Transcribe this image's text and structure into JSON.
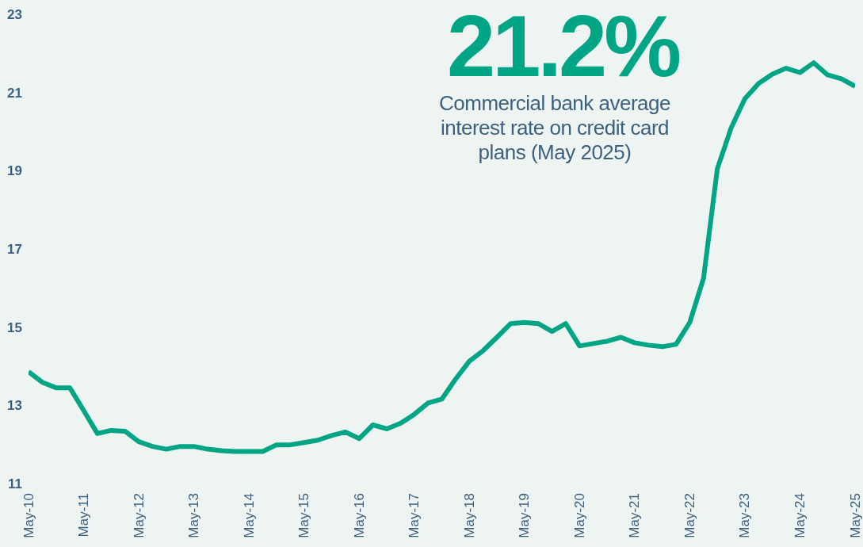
{
  "chart_data": {
    "type": "line",
    "categories": [
      "May-10",
      null,
      null,
      null,
      "May-11",
      null,
      null,
      null,
      "May-12",
      null,
      null,
      null,
      "May-13",
      null,
      null,
      null,
      "May-14",
      null,
      null,
      null,
      "May-15",
      null,
      null,
      null,
      "May-16",
      null,
      null,
      null,
      "May-17",
      null,
      null,
      null,
      "May-18",
      null,
      null,
      null,
      "May-19",
      null,
      null,
      null,
      "May-20",
      null,
      null,
      null,
      "May-21",
      null,
      null,
      null,
      "May-22",
      null,
      null,
      null,
      "May-23",
      null,
      null,
      null,
      "May-24",
      null,
      null,
      null,
      "May-25"
    ],
    "values": [
      13.86,
      13.59,
      13.45,
      13.45,
      12.87,
      12.28,
      12.36,
      12.34,
      12.07,
      11.95,
      11.88,
      11.95,
      11.95,
      11.88,
      11.84,
      11.82,
      11.82,
      11.82,
      11.99,
      11.99,
      12.05,
      12.11,
      12.23,
      12.32,
      12.15,
      12.5,
      12.4,
      12.54,
      12.77,
      13.06,
      13.16,
      13.67,
      14.13,
      14.4,
      14.74,
      15.09,
      15.12,
      15.09,
      14.89,
      15.09,
      14.52,
      14.58,
      14.64,
      14.74,
      14.6,
      14.54,
      14.5,
      14.56,
      15.12,
      16.25,
      19.05,
      20.09,
      20.84,
      21.23,
      21.47,
      21.62,
      21.51,
      21.76,
      21.45,
      21.35,
      21.16
    ],
    "color": "#00a585",
    "ylim": [
      11,
      23
    ],
    "yticks": [
      11,
      13,
      15,
      17,
      19,
      21,
      23
    ],
    "grid": false,
    "legend": false,
    "annotations": [
      "21.2%",
      "Commercial bank average interest rate on credit card plans (May 2025)"
    ]
  }
}
